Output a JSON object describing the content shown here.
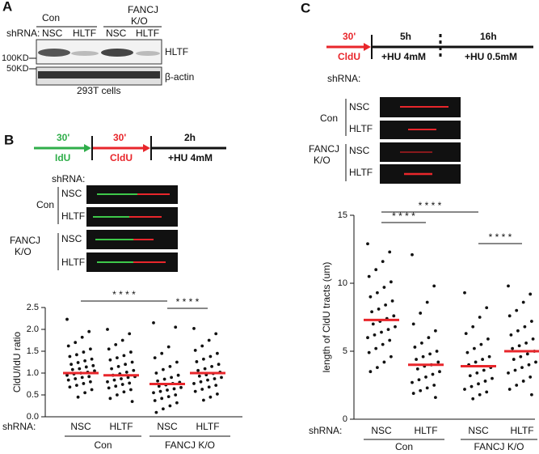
{
  "panel_a": {
    "label": "A",
    "con": "Con",
    "fancj": [
      "FANCJ",
      "K/O"
    ],
    "shrna_label": "shRNA:",
    "lanes": [
      "NSC",
      "HLTF",
      "NSC",
      "HLTF"
    ],
    "markers": [
      "100KD",
      "50KD"
    ],
    "bands": [
      "HLTF",
      "β-actin"
    ],
    "caption": "293T cells"
  },
  "panel_b": {
    "label": "B",
    "timeline": {
      "pulse1_time": "30'",
      "pulse1_label": "IdU",
      "pulse2_time": "30'",
      "pulse2_label": "CldU",
      "chase_time": "2h",
      "chase_label": "+HU 4mM"
    },
    "fibers": {
      "shrna_label": "shRNA:",
      "con": "Con",
      "fancj": [
        "FANCJ",
        "K/O"
      ],
      "lanes": [
        "NSC",
        "HLTF",
        "NSC",
        "HLTF"
      ]
    }
  },
  "panel_c": {
    "label": "C",
    "timeline": {
      "pulse_time": "30'",
      "pulse_label": "CldU",
      "chase1_time": "5h",
      "chase1_label": "+HU 4mM",
      "chase2_time": "16h",
      "chase2_label": "+HU 0.5mM"
    },
    "fibers": {
      "shrna_label": "shRNA:",
      "con": "Con",
      "fancj": [
        "FANCJ",
        "K/O"
      ],
      "lanes": [
        "NSC",
        "HLTF",
        "NSC",
        "HLTF"
      ]
    }
  },
  "chart_data": [
    {
      "type": "strip",
      "ylabel": "CldU/IdU ratio",
      "ylim": [
        0,
        2.5
      ],
      "yticks": [
        {
          "value": 0,
          "label": "0.0"
        },
        {
          "value": 0.5,
          "label": "0.5"
        },
        {
          "value": 1,
          "label": "1.0"
        },
        {
          "value": 1.5,
          "label": "1.5"
        },
        {
          "value": 2,
          "label": "2.0"
        },
        {
          "value": 2.5,
          "label": "2.5"
        }
      ],
      "shrna_label": "shRNA:",
      "categories": [
        "NSC",
        "HLTF",
        "NSC",
        "HLTF"
      ],
      "groups": [
        "Con",
        "FANCJ K/O"
      ],
      "color": "#111111",
      "mean_color": "#e8262b",
      "values": [
        [
          2.23,
          1.95,
          1.82,
          1.7,
          1.62,
          1.55,
          1.48,
          1.42,
          1.38,
          1.32,
          1.28,
          1.24,
          1.2,
          1.17,
          1.14,
          1.1,
          1.08,
          1.05,
          1.02,
          1.0,
          0.98,
          0.95,
          0.92,
          0.9,
          0.87,
          0.84,
          0.8,
          0.76,
          0.72,
          0.68,
          0.62,
          0.55,
          0.45
        ],
        [
          2.0,
          1.9,
          1.75,
          1.65,
          1.55,
          1.48,
          1.4,
          1.35,
          1.3,
          1.25,
          1.2,
          1.15,
          1.1,
          1.06,
          1.02,
          0.98,
          0.95,
          0.92,
          0.9,
          0.87,
          0.84,
          0.8,
          0.77,
          0.74,
          0.7,
          0.66,
          0.62,
          0.57,
          0.5,
          0.42,
          0.35
        ],
        [
          2.15,
          2.05,
          1.6,
          1.45,
          1.35,
          1.25,
          1.15,
          1.08,
          1.0,
          0.95,
          0.9,
          0.86,
          0.82,
          0.79,
          0.76,
          0.73,
          0.7,
          0.67,
          0.64,
          0.61,
          0.58,
          0.55,
          0.5,
          0.46,
          0.42,
          0.37,
          0.32,
          0.25,
          0.18,
          0.1
        ],
        [
          2.02,
          1.9,
          1.75,
          1.62,
          1.52,
          1.45,
          1.38,
          1.32,
          1.26,
          1.2,
          1.15,
          1.1,
          1.06,
          1.02,
          0.99,
          0.96,
          0.93,
          0.9,
          0.87,
          0.84,
          0.8,
          0.76,
          0.72,
          0.68,
          0.63,
          0.58,
          0.52,
          0.45,
          0.38
        ]
      ],
      "means": [
        1.0,
        0.95,
        0.75,
        1.0
      ],
      "significance": [
        {
          "pair": [
            0,
            2
          ],
          "label": "* * * *"
        },
        {
          "pair": [
            2,
            3
          ],
          "label": "* * * *"
        }
      ]
    },
    {
      "type": "strip",
      "ylabel": "length of CldU tracts (um)",
      "ylim": [
        0,
        15
      ],
      "yticks": [
        0,
        5,
        10,
        15
      ],
      "shrna_label": "shRNA:",
      "categories": [
        "NSC",
        "HLTF",
        "NSC",
        "HLTF"
      ],
      "groups": [
        "Con",
        "FANCJ K/O"
      ],
      "color": "#111111",
      "mean_color": "#e8262b",
      "values": [
        [
          12.9,
          12.3,
          11.6,
          11.0,
          10.5,
          10.1,
          9.7,
          9.3,
          9.0,
          8.7,
          8.4,
          8.1,
          7.9,
          7.6,
          7.4,
          7.2,
          7.0,
          6.8,
          6.6,
          6.4,
          6.2,
          6.0,
          5.8,
          5.5,
          5.2,
          4.9,
          4.6,
          4.2,
          3.8,
          3.5
        ],
        [
          12.1,
          9.8,
          8.6,
          7.8,
          7.0,
          6.5,
          6.0,
          5.6,
          5.3,
          5.0,
          4.8,
          4.6,
          4.4,
          4.2,
          4.0,
          3.9,
          3.7,
          3.5,
          3.3,
          3.1,
          2.9,
          2.7,
          2.5,
          2.3,
          2.1,
          1.9,
          1.6
        ],
        [
          9.3,
          8.2,
          7.5,
          6.8,
          6.3,
          5.9,
          5.5,
          5.2,
          4.9,
          4.6,
          4.4,
          4.2,
          4.0,
          3.8,
          3.6,
          3.4,
          3.2,
          3.0,
          2.8,
          2.6,
          2.4,
          2.2,
          2.0,
          1.8,
          1.5
        ],
        [
          9.8,
          9.2,
          8.6,
          8.0,
          7.6,
          7.2,
          6.8,
          6.5,
          6.2,
          5.9,
          5.6,
          5.4,
          5.2,
          5.0,
          4.8,
          4.6,
          4.4,
          4.2,
          4.0,
          3.8,
          3.6,
          3.4,
          3.1,
          2.8,
          2.5,
          2.2,
          1.8
        ]
      ],
      "means": [
        7.3,
        4.0,
        3.9,
        5.0
      ],
      "significance": [
        {
          "pair": [
            0,
            2
          ],
          "label": "* * * *"
        },
        {
          "pair": [
            0,
            1
          ],
          "label": "* * * *"
        },
        {
          "pair": [
            2,
            3
          ],
          "label": "* * * *"
        }
      ]
    }
  ]
}
